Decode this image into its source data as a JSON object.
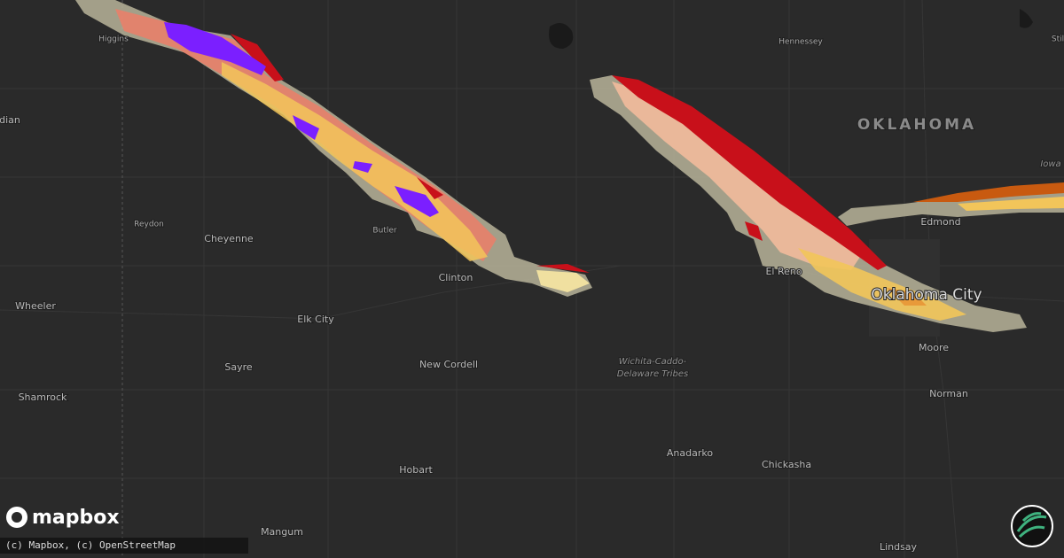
{
  "labels": [
    "Higgins",
    "dian",
    "Hennessey",
    "Stil",
    "Iowa",
    "Reydon",
    "Cheyenne",
    "Butler",
    "Clinton",
    "Edmond",
    "El Reno",
    "Oklahoma City",
    "Wheeler",
    "Elk City",
    "Sayre",
    "New Cordell",
    "Moore",
    "Norman",
    "Shamrock",
    "Hobart",
    "Anadarko",
    "Chickasha",
    "Mangum",
    "Lindsay"
  ],
  "state": "OKLAHOMA",
  "tribal_area": [
    "Wichita-Caddo-",
    "Delaware Tribes"
  ],
  "logo": "mapbox",
  "attribution": "(c) Mapbox, (c) OpenStreetMap"
}
